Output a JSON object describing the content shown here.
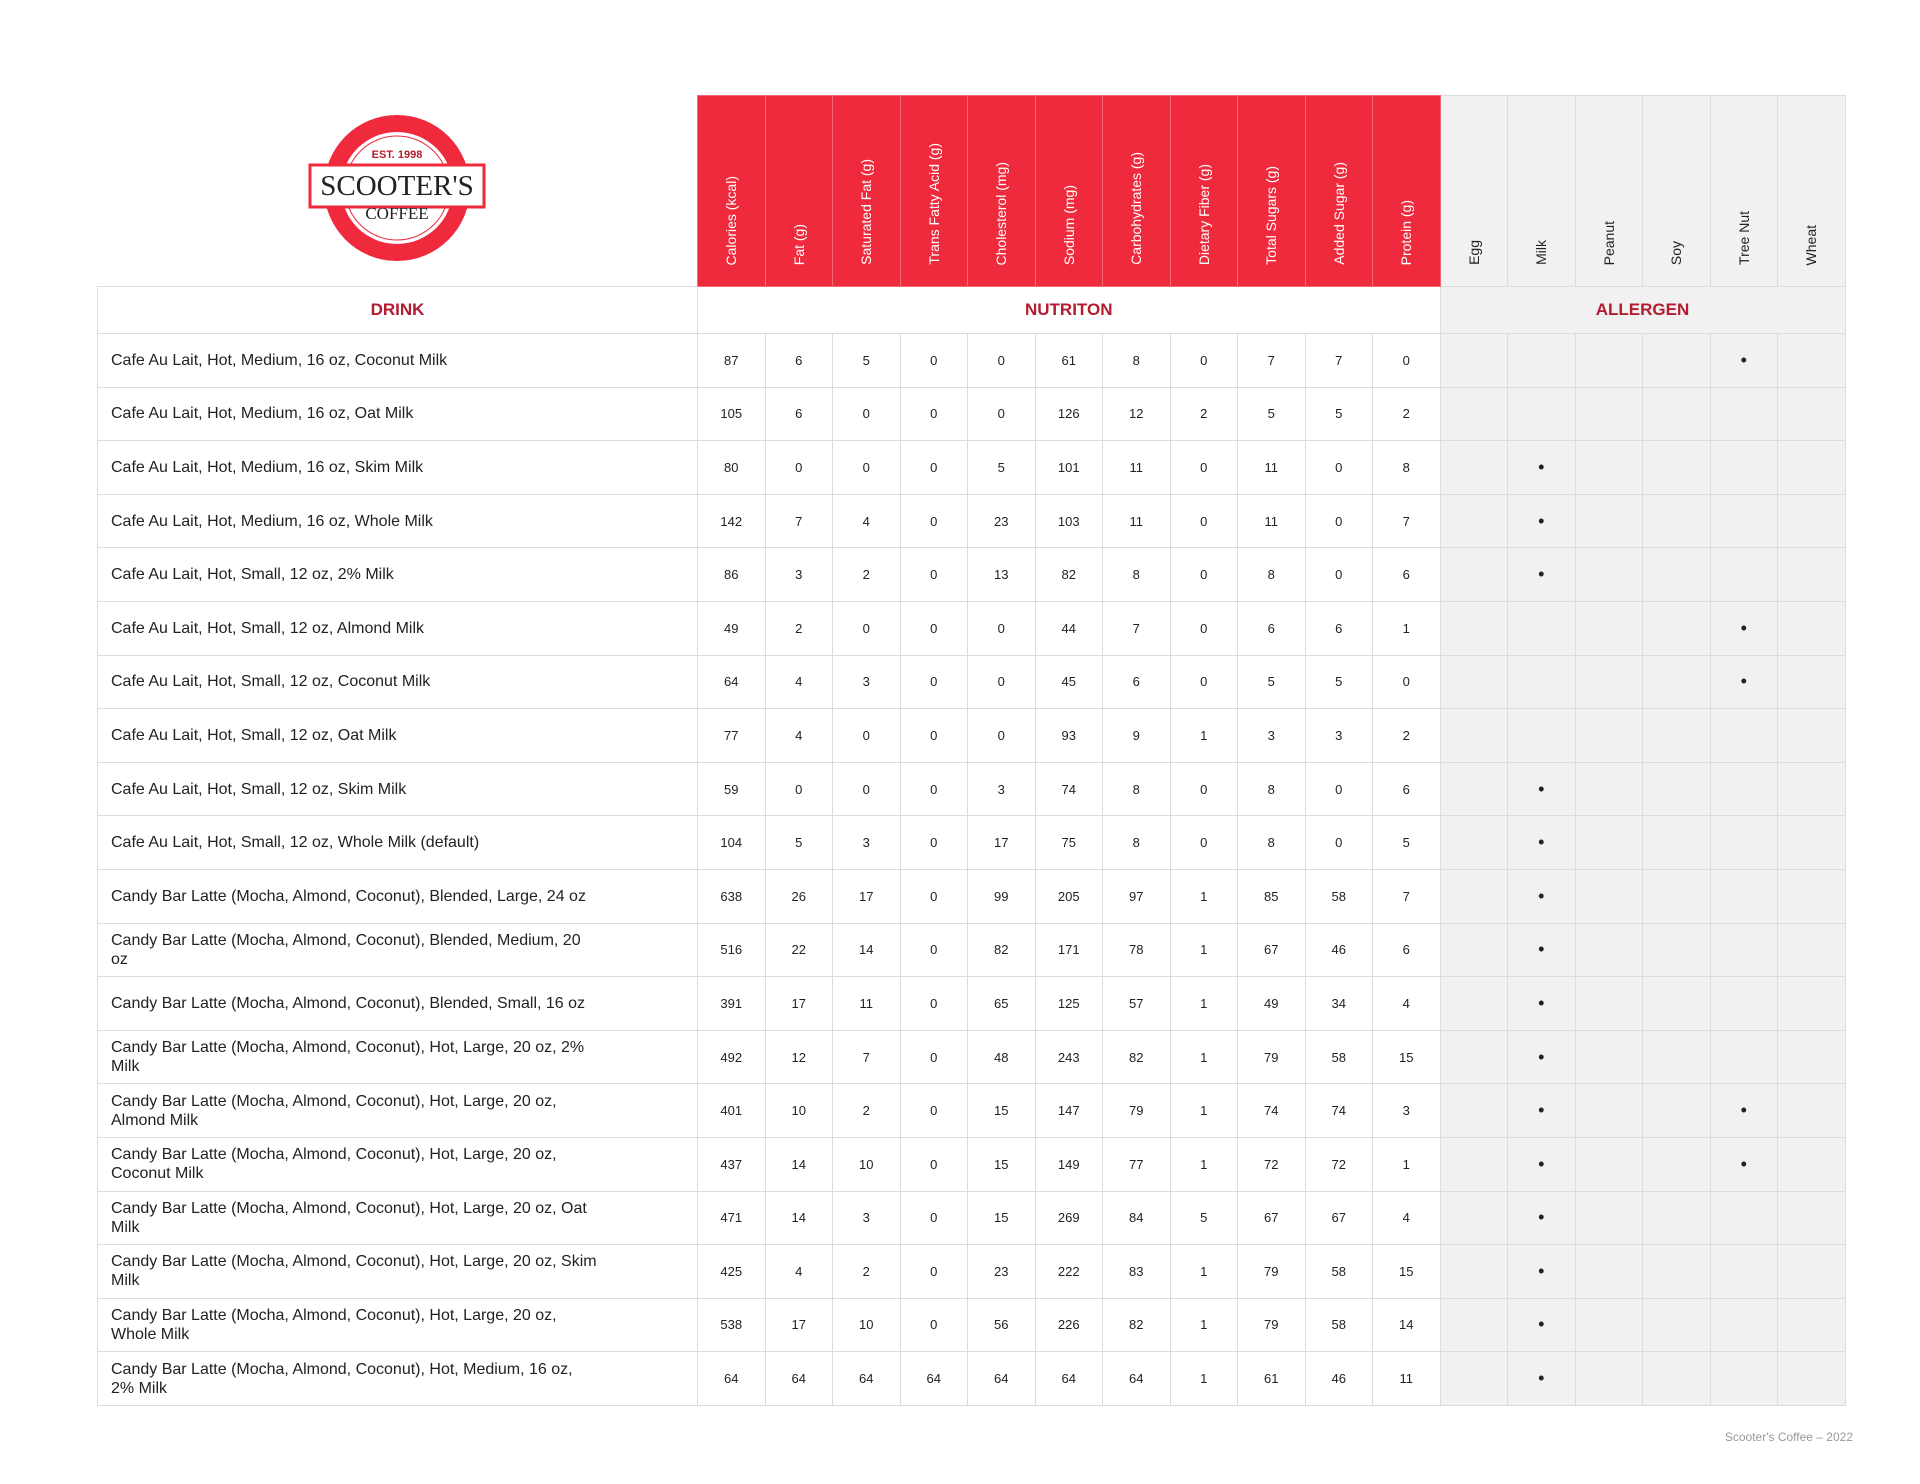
{
  "brand": {
    "logo_text": "SCOOTER'S",
    "logo_sub": "COFFEE",
    "logo_est": "EST. 1998",
    "colors": {
      "red": "#ee2a3c",
      "dark_red": "#b31b2e",
      "allergen_bg": "#f1f1f1"
    }
  },
  "sections": {
    "drink": "DRINK",
    "nutrition": "NUTRITON",
    "allergen": "ALLERGEN"
  },
  "nutrition_columns": [
    "Calories (kcal)",
    "Fat (g)",
    "Saturated Fat (g)",
    "Trans Fatty Acid (g)",
    "Cholesterol (mg)",
    "Sodium (mg)",
    "Carbohydrates (g)",
    "Dietary Fiber (g)",
    "Total Sugars (g)",
    "Added Sugar (g)",
    "Protein (g)"
  ],
  "allergen_columns": [
    "Egg",
    "Milk",
    "Peanut",
    "Soy",
    "Tree Nut",
    "Wheat"
  ],
  "allergen_mark": "•",
  "rows": [
    {
      "name": "Cafe Au Lait, Hot, Medium, 16 oz, Coconut Milk",
      "n": [
        "87",
        "6",
        "5",
        "0",
        "0",
        "61",
        "8",
        "0",
        "7",
        "7",
        "0"
      ],
      "a": [
        "",
        "",
        "",
        "",
        "•",
        ""
      ]
    },
    {
      "name": "Cafe Au Lait, Hot, Medium, 16 oz, Oat Milk",
      "n": [
        "105",
        "6",
        "0",
        "0",
        "0",
        "126",
        "12",
        "2",
        "5",
        "5",
        "2"
      ],
      "a": [
        "",
        "",
        "",
        "",
        "",
        ""
      ]
    },
    {
      "name": "Cafe Au Lait, Hot, Medium, 16 oz, Skim Milk",
      "n": [
        "80",
        "0",
        "0",
        "0",
        "5",
        "101",
        "11",
        "0",
        "11",
        "0",
        "8"
      ],
      "a": [
        "",
        "•",
        "",
        "",
        "",
        ""
      ]
    },
    {
      "name": "Cafe Au Lait, Hot, Medium, 16 oz, Whole Milk",
      "n": [
        "142",
        "7",
        "4",
        "0",
        "23",
        "103",
        "11",
        "0",
        "11",
        "0",
        "7"
      ],
      "a": [
        "",
        "•",
        "",
        "",
        "",
        ""
      ]
    },
    {
      "name": "Cafe Au Lait, Hot, Small, 12 oz, 2% Milk",
      "n": [
        "86",
        "3",
        "2",
        "0",
        "13",
        "82",
        "8",
        "0",
        "8",
        "0",
        "6"
      ],
      "a": [
        "",
        "•",
        "",
        "",
        "",
        ""
      ]
    },
    {
      "name": "Cafe Au Lait, Hot, Small, 12 oz, Almond Milk",
      "n": [
        "49",
        "2",
        "0",
        "0",
        "0",
        "44",
        "7",
        "0",
        "6",
        "6",
        "1"
      ],
      "a": [
        "",
        "",
        "",
        "",
        "•",
        ""
      ]
    },
    {
      "name": "Cafe Au Lait, Hot, Small, 12 oz, Coconut Milk",
      "n": [
        "64",
        "4",
        "3",
        "0",
        "0",
        "45",
        "6",
        "0",
        "5",
        "5",
        "0"
      ],
      "a": [
        "",
        "",
        "",
        "",
        "•",
        ""
      ]
    },
    {
      "name": "Cafe Au Lait, Hot, Small, 12 oz, Oat Milk",
      "n": [
        "77",
        "4",
        "0",
        "0",
        "0",
        "93",
        "9",
        "1",
        "3",
        "3",
        "2"
      ],
      "a": [
        "",
        "",
        "",
        "",
        "",
        ""
      ]
    },
    {
      "name": "Cafe Au Lait, Hot, Small, 12 oz, Skim Milk",
      "n": [
        "59",
        "0",
        "0",
        "0",
        "3",
        "74",
        "8",
        "0",
        "8",
        "0",
        "6"
      ],
      "a": [
        "",
        "•",
        "",
        "",
        "",
        ""
      ]
    },
    {
      "name": "Cafe Au Lait, Hot, Small, 12 oz, Whole Milk (default)",
      "n": [
        "104",
        "5",
        "3",
        "0",
        "17",
        "75",
        "8",
        "0",
        "8",
        "0",
        "5"
      ],
      "a": [
        "",
        "•",
        "",
        "",
        "",
        ""
      ]
    },
    {
      "name": "Candy Bar Latte (Mocha, Almond, Coconut), Blended, Large, 24 oz",
      "n": [
        "638",
        "26",
        "17",
        "0",
        "99",
        "205",
        "97",
        "1",
        "85",
        "58",
        "7"
      ],
      "a": [
        "",
        "•",
        "",
        "",
        "",
        ""
      ]
    },
    {
      "name": "Candy Bar Latte (Mocha, Almond, Coconut), Blended, Medium, 20 oz",
      "n": [
        "516",
        "22",
        "14",
        "0",
        "82",
        "171",
        "78",
        "1",
        "67",
        "46",
        "6"
      ],
      "a": [
        "",
        "•",
        "",
        "",
        "",
        ""
      ]
    },
    {
      "name": "Candy Bar Latte (Mocha, Almond, Coconut), Blended, Small, 16 oz",
      "n": [
        "391",
        "17",
        "11",
        "0",
        "65",
        "125",
        "57",
        "1",
        "49",
        "34",
        "4"
      ],
      "a": [
        "",
        "•",
        "",
        "",
        "",
        ""
      ]
    },
    {
      "name": "Candy Bar Latte (Mocha, Almond, Coconut), Hot, Large, 20 oz, 2% Milk",
      "n": [
        "492",
        "12",
        "7",
        "0",
        "48",
        "243",
        "82",
        "1",
        "79",
        "58",
        "15"
      ],
      "a": [
        "",
        "•",
        "",
        "",
        "",
        ""
      ]
    },
    {
      "name": "Candy Bar Latte (Mocha, Almond, Coconut), Hot, Large, 20 oz, Almond Milk",
      "n": [
        "401",
        "10",
        "2",
        "0",
        "15",
        "147",
        "79",
        "1",
        "74",
        "74",
        "3"
      ],
      "a": [
        "",
        "•",
        "",
        "",
        "•",
        ""
      ]
    },
    {
      "name": "Candy Bar Latte (Mocha, Almond, Coconut), Hot, Large, 20 oz, Coconut Milk",
      "n": [
        "437",
        "14",
        "10",
        "0",
        "15",
        "149",
        "77",
        "1",
        "72",
        "72",
        "1"
      ],
      "a": [
        "",
        "•",
        "",
        "",
        "•",
        ""
      ]
    },
    {
      "name": "Candy Bar Latte (Mocha, Almond, Coconut), Hot, Large, 20 oz, Oat Milk",
      "n": [
        "471",
        "14",
        "3",
        "0",
        "15",
        "269",
        "84",
        "5",
        "67",
        "67",
        "4"
      ],
      "a": [
        "",
        "•",
        "",
        "",
        "",
        ""
      ]
    },
    {
      "name": "Candy Bar Latte (Mocha, Almond, Coconut), Hot, Large, 20 oz, Skim Milk",
      "n": [
        "425",
        "4",
        "2",
        "0",
        "23",
        "222",
        "83",
        "1",
        "79",
        "58",
        "15"
      ],
      "a": [
        "",
        "•",
        "",
        "",
        "",
        ""
      ]
    },
    {
      "name": "Candy Bar Latte (Mocha, Almond, Coconut), Hot, Large, 20 oz, Whole Milk",
      "n": [
        "538",
        "17",
        "10",
        "0",
        "56",
        "226",
        "82",
        "1",
        "79",
        "58",
        "14"
      ],
      "a": [
        "",
        "•",
        "",
        "",
        "",
        ""
      ]
    },
    {
      "name": "Candy Bar Latte (Mocha, Almond, Coconut), Hot, Medium, 16 oz, 2% Milk",
      "n": [
        "64",
        "64",
        "64",
        "64",
        "64",
        "64",
        "64",
        "1",
        "61",
        "46",
        "11"
      ],
      "a": [
        "",
        "•",
        "",
        "",
        "",
        ""
      ]
    }
  ],
  "footer": "Scooter's Coffee – 2022"
}
